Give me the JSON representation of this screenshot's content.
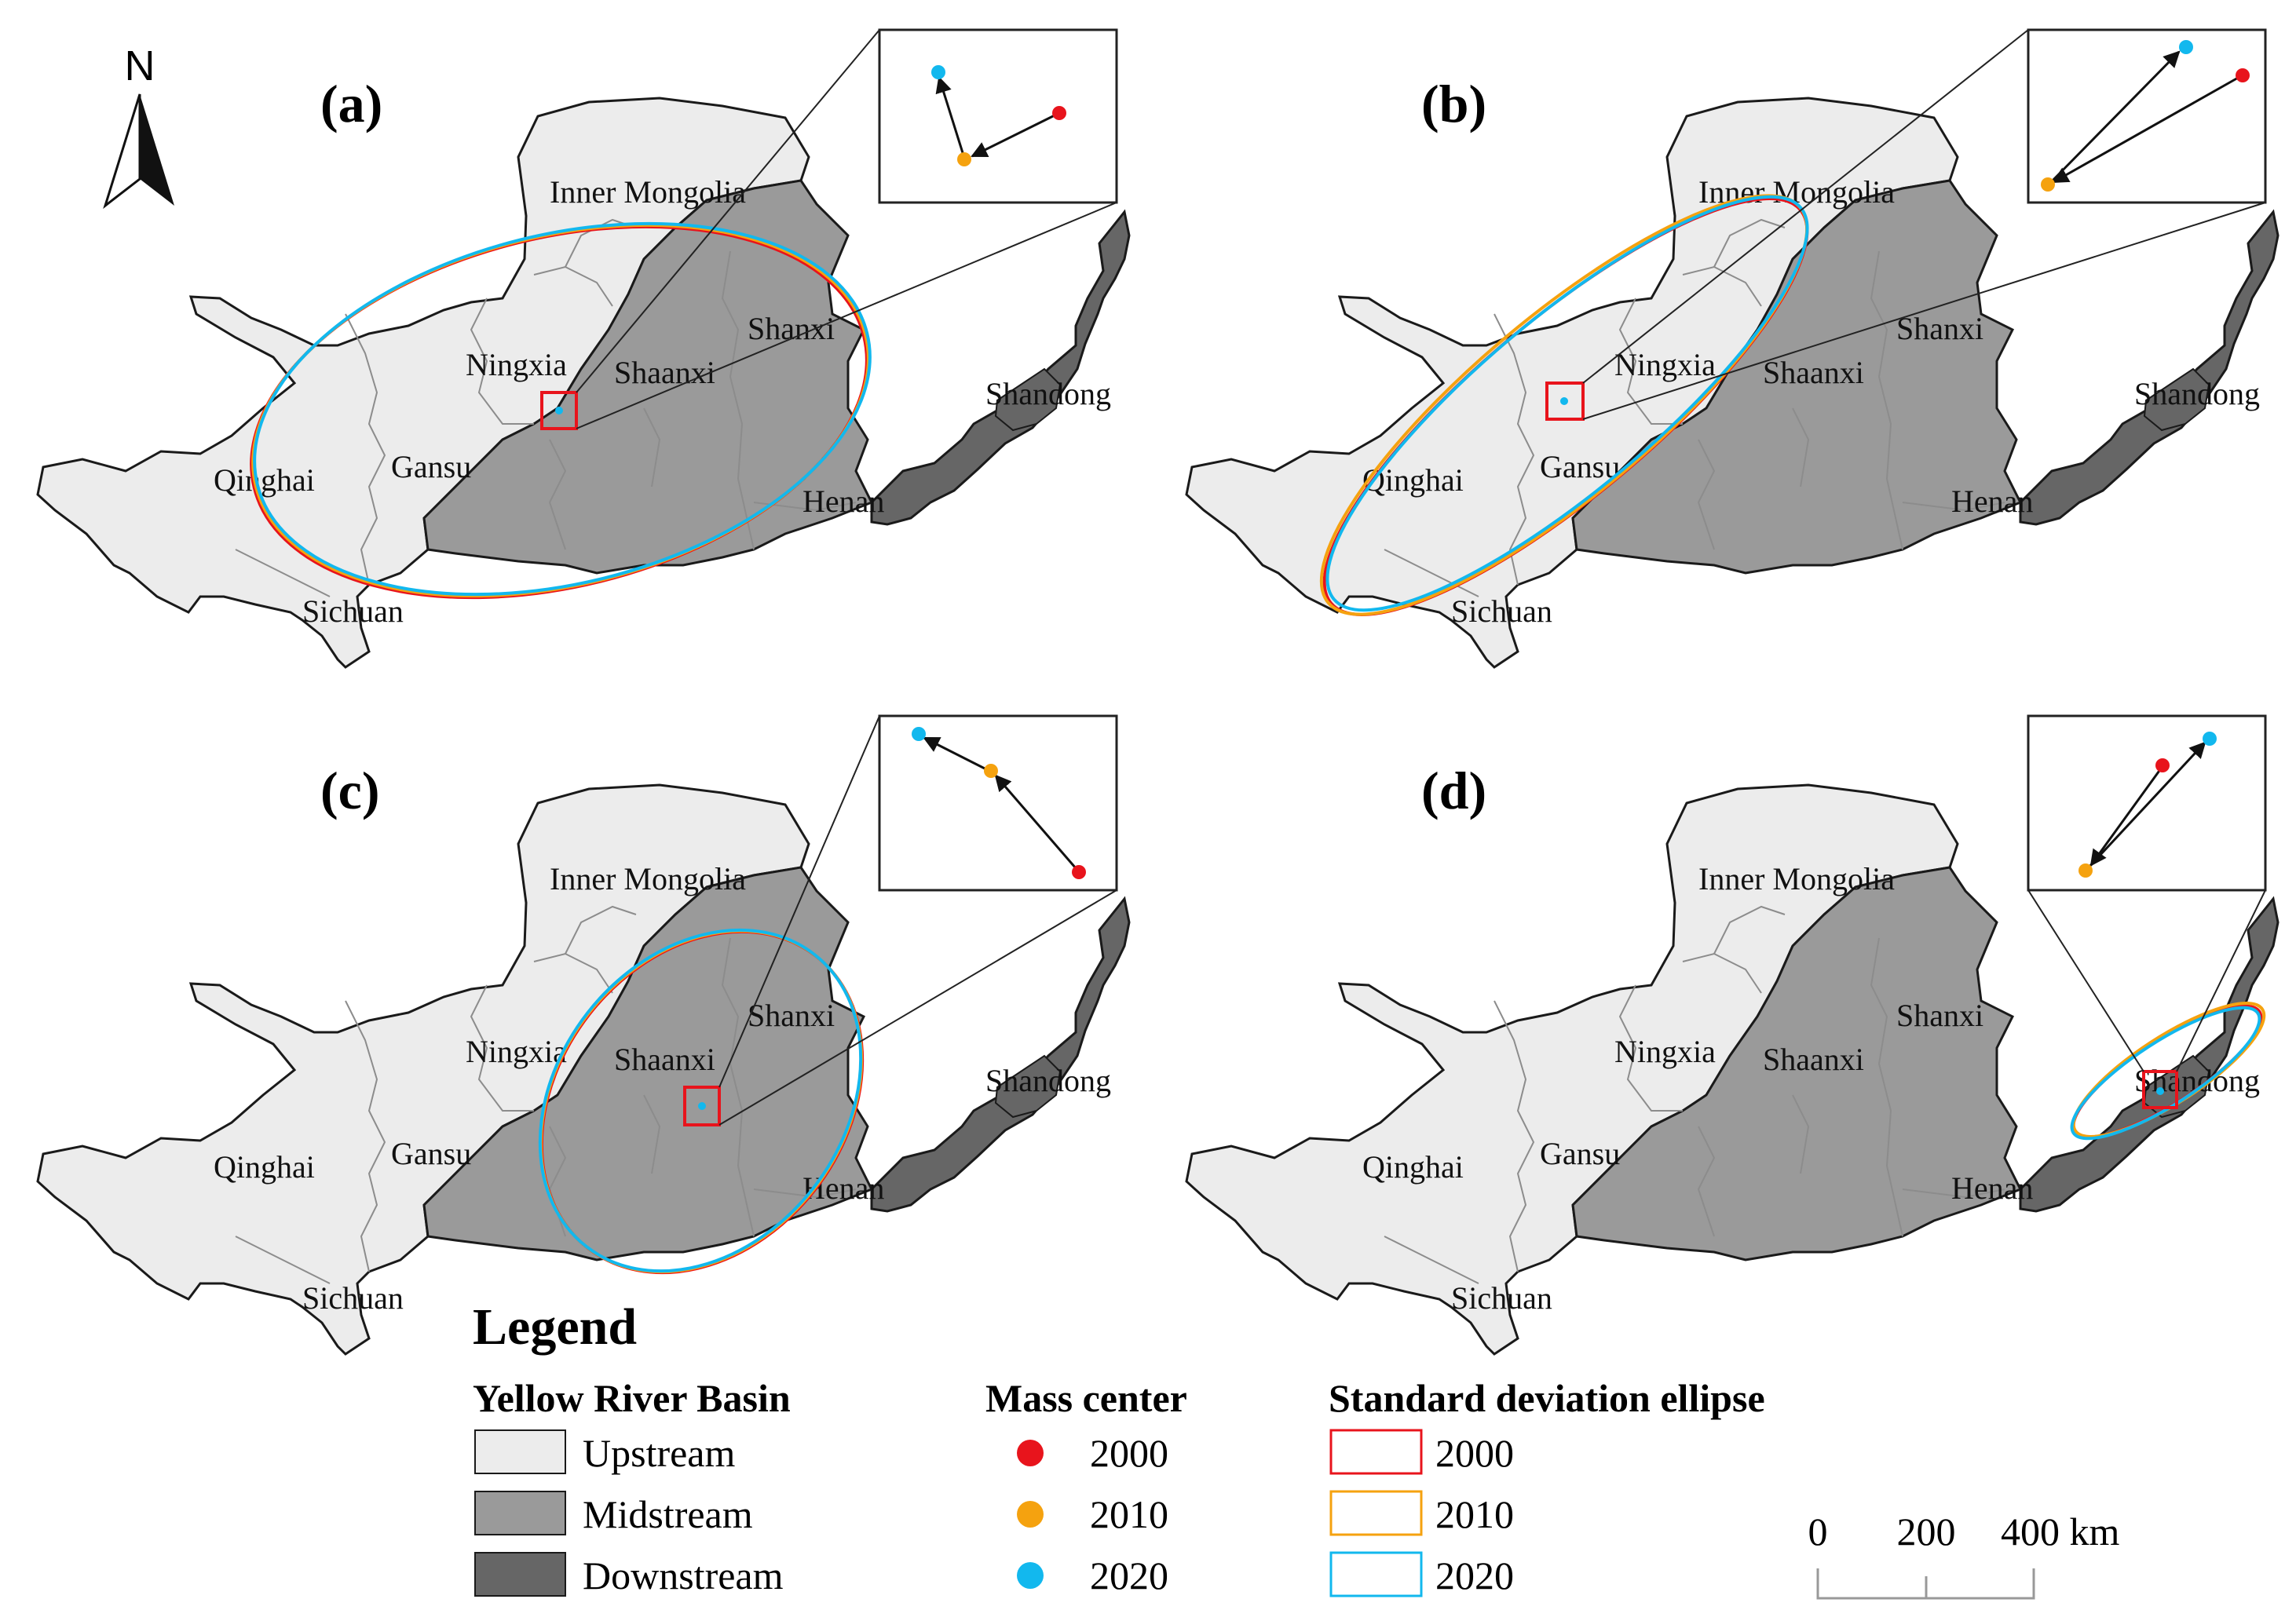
{
  "north_arrow": {
    "label": "N"
  },
  "colors": {
    "upstream": "#ececec",
    "midstream": "#9a9a9a",
    "downstream": "#666666",
    "year_2000": "#e8141c",
    "year_2010": "#f5a20f",
    "year_2020": "#12b8ee",
    "outline": "#1a1a1a",
    "inner_border": "#8c8c8c"
  },
  "provinces": {
    "inner_mongolia": "Inner Mongolia",
    "ningxia": "Ningxia",
    "shaanxi": "Shaanxi",
    "shanxi": "Shanxi",
    "shandong": "Shandong",
    "qinghai": "Qinghai",
    "gansu": "Gansu",
    "henan": "Henan",
    "sichuan": "Sichuan"
  },
  "panels": [
    {
      "label": "(a)"
    },
    {
      "label": "(b)"
    },
    {
      "label": "(c)"
    },
    {
      "label": "(d)"
    }
  ],
  "legend": {
    "title": "Legend",
    "basin_heading": "Yellow River Basin",
    "basin_items": [
      "Upstream",
      "Midstream",
      "Downstream"
    ],
    "mass_heading": "Mass center",
    "mass_items": [
      "2000",
      "2010",
      "2020"
    ],
    "ellipse_heading": "Standard deviation ellipse",
    "ellipse_items": [
      "2000",
      "2010",
      "2020"
    ]
  },
  "scale_bar": {
    "labels": [
      "0",
      "200",
      "400 km"
    ]
  }
}
